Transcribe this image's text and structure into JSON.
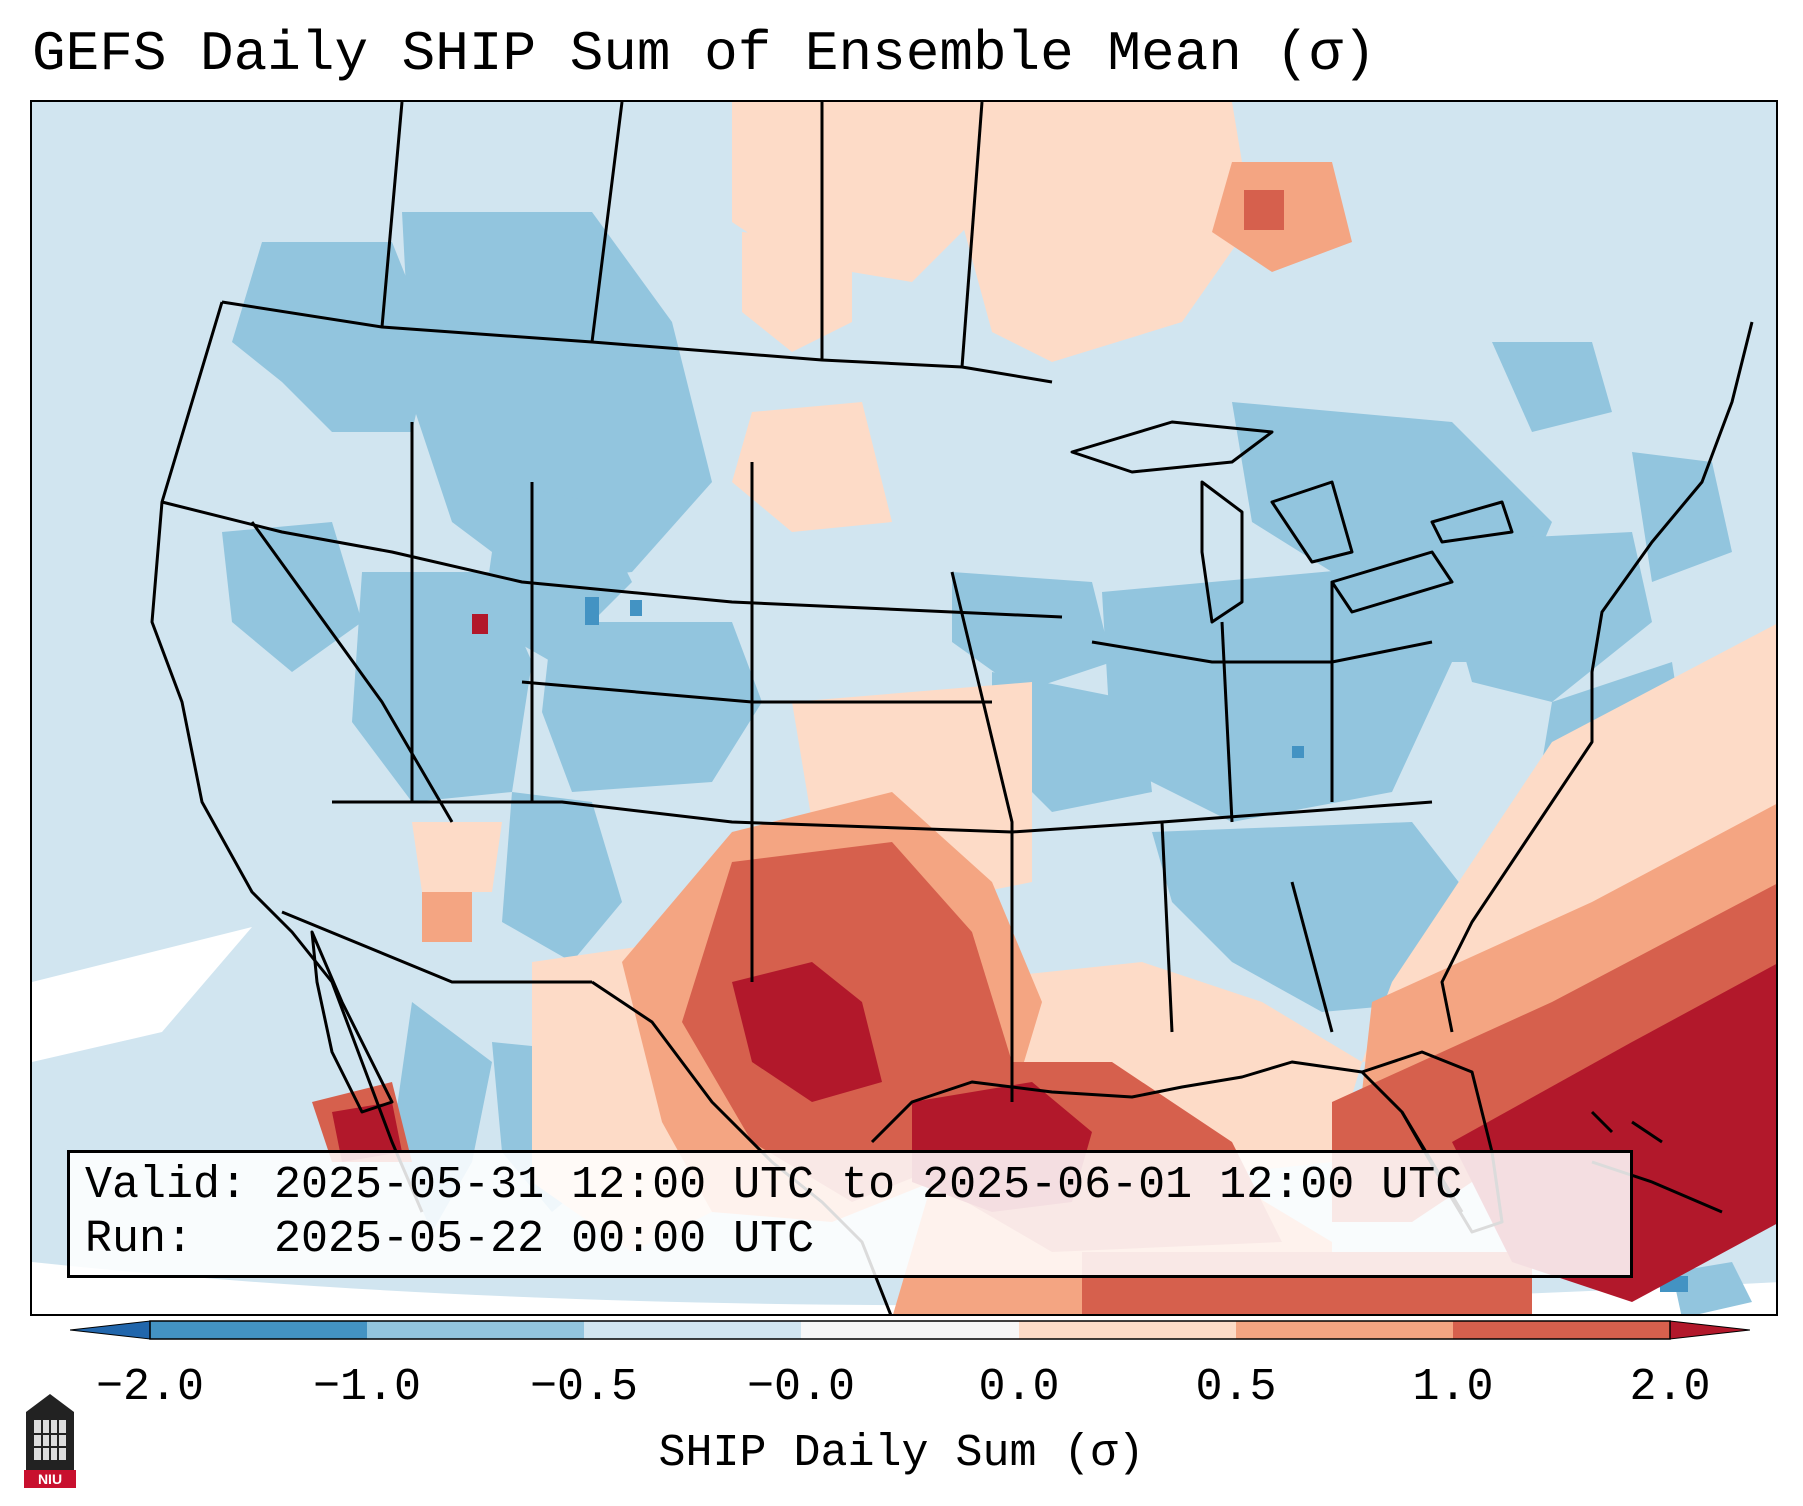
{
  "title": "GEFS Daily SHIP Sum of Ensemble Mean (σ)",
  "info": {
    "valid_line": "Valid: 2025-05-31 12:00 UTC to 2025-06-01 12:00 UTC",
    "run_line": "Run:   2025-05-22 00:00 UTC"
  },
  "colorbar": {
    "label": "SHIP Daily Sum (σ)",
    "ticks": [
      "−2.0",
      "−1.0",
      "−0.5",
      "−0.0",
      "0.0",
      "0.5",
      "1.0",
      "2.0"
    ],
    "colors": [
      "#4393c3",
      "#92c5de",
      "#d1e5f0",
      "#f7f7f7",
      "#fddbc7",
      "#f4a582",
      "#d6604d"
    ],
    "under_color": "#2166ac",
    "over_color": "#b2182b"
  },
  "logo": {
    "text": "NIU"
  },
  "field_colors": {
    "background": "#d1e5f0",
    "neg_medium": "#92c5de",
    "neg_strong": "#4393c3",
    "near_zero": "#f7f7f7",
    "pos_weak": "#fddbc7",
    "pos_medium": "#f4a582",
    "pos_strong": "#d6604d",
    "pos_extreme": "#b2182b"
  }
}
